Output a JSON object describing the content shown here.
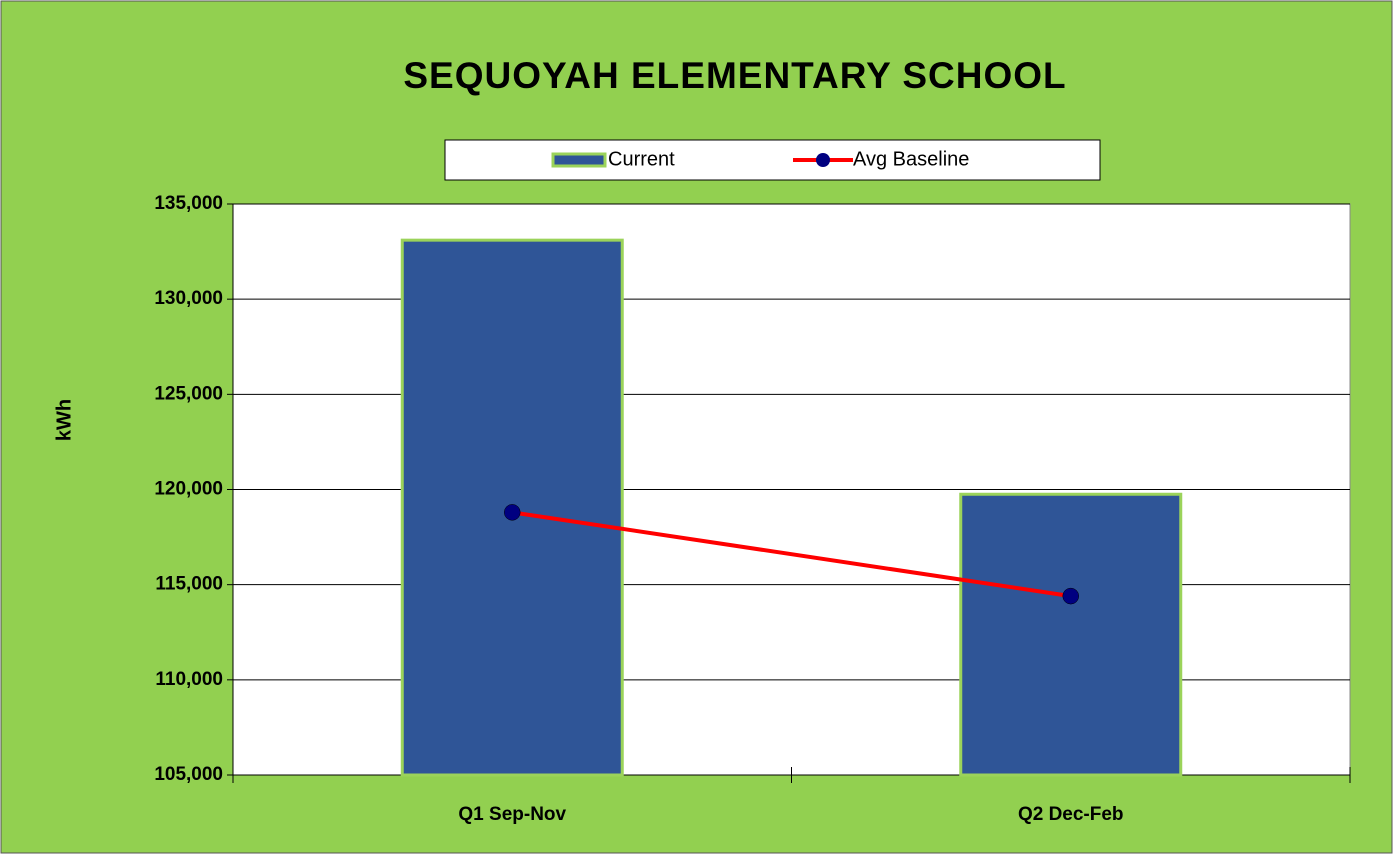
{
  "chart_data": {
    "type": "bar",
    "title": "SEQUOYAH ELEMENTARY SCHOOL",
    "y_label": "kWh",
    "categories": [
      "Q1 Sep-Nov",
      "Q2 Dec-Feb"
    ],
    "series": [
      {
        "name": "Current",
        "type": "bar",
        "color": "#2f5597",
        "values": [
          133100,
          119750
        ]
      },
      {
        "name": "Avg Baseline",
        "type": "line",
        "color": "#ff0000",
        "marker_color": "#000080",
        "values": [
          118800,
          114400
        ]
      }
    ],
    "ylim": [
      105000,
      135000
    ],
    "yticks": [
      {
        "value": 105000,
        "label": "105,000"
      },
      {
        "value": 110000,
        "label": "110,000"
      },
      {
        "value": 115000,
        "label": "115,000"
      },
      {
        "value": 120000,
        "label": "120,000"
      },
      {
        "value": 125000,
        "label": "125,000"
      },
      {
        "value": 130000,
        "label": "130,000"
      },
      {
        "value": 135000,
        "label": "135,000"
      }
    ],
    "grid": true,
    "legend": "top"
  }
}
